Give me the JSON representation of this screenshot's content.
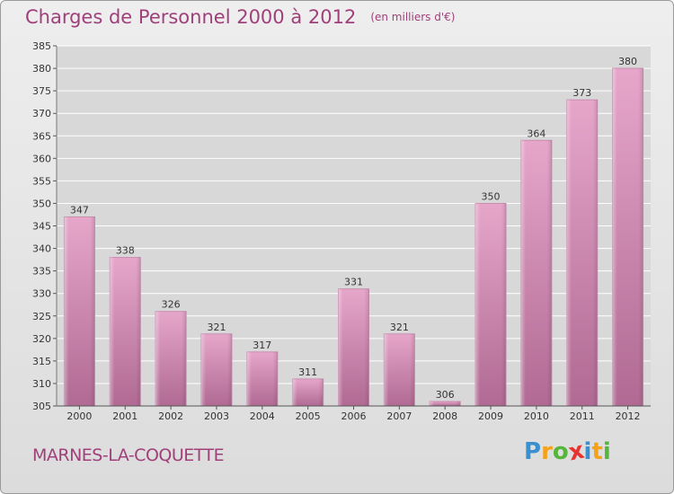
{
  "title": "Charges de Personnel 2000 à 2012",
  "subtitle": "(en milliers d'€)",
  "commune": "MARNES-LA-COQUETTE",
  "logo": {
    "letters": [
      "P",
      "r",
      "o",
      "x",
      "i",
      "t",
      "i"
    ],
    "colors": [
      "#3a8fd0",
      "#f5a21b",
      "#56b63c",
      "#e8322f",
      "#3a8fd0",
      "#f5a21b",
      "#56b63c"
    ]
  },
  "chart_data": {
    "type": "bar",
    "categories": [
      "2000",
      "2001",
      "2002",
      "2003",
      "2004",
      "2005",
      "2006",
      "2007",
      "2008",
      "2009",
      "2010",
      "2011",
      "2012"
    ],
    "values": [
      347,
      338,
      326,
      321,
      317,
      311,
      331,
      321,
      306,
      350,
      364,
      373,
      380
    ],
    "ylim": [
      305,
      385
    ],
    "yticks": [
      305,
      310,
      315,
      320,
      325,
      330,
      335,
      340,
      345,
      350,
      355,
      360,
      365,
      370,
      375,
      380,
      385
    ],
    "grid": true,
    "bar_color": "#c970a0"
  }
}
